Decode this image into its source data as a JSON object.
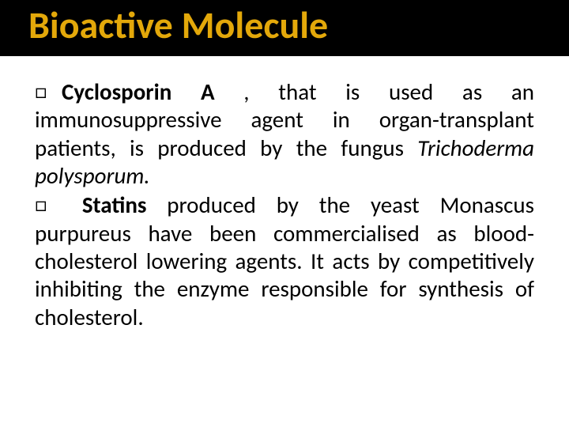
{
  "slide": {
    "title": "Bioactive Molecule",
    "title_color": "#e3a80a",
    "background_color": "#ffffff",
    "title_bar_color": "#000000",
    "text_color": "#000000",
    "title_fontsize": 48,
    "body_fontsize": 29,
    "bullet_glyph": "□",
    "bullets": [
      {
        "leading_bold": "Cyclosporin  A ",
        "body_before_italic": ",   that is used as an immunosuppressive agent in organ-transplant patients, is produced by the fungus ",
        "italic_segment": "Trichoderma polysporum.",
        "body_after_italic": ""
      },
      {
        "leading_bold": " Statins",
        "body_before_italic": " produced by the yeast Monascus purpureus have been commercialised as blood-cholesterol lowering agents. It acts by competitively inhibiting the enzyme responsible for synthesis of cholesterol.",
        "italic_segment": "",
        "body_after_italic": ""
      }
    ]
  }
}
